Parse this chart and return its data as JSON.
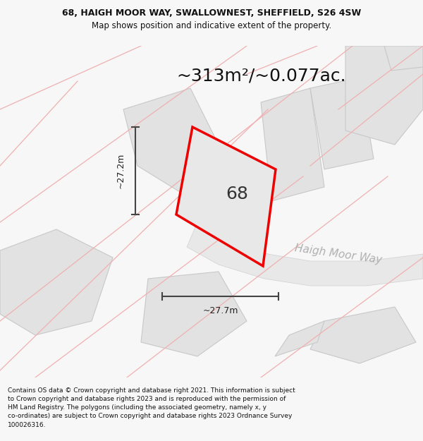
{
  "title_line1": "68, HAIGH MOOR WAY, SWALLOWNEST, SHEFFIELD, S26 4SW",
  "title_line2": "Map shows position and indicative extent of the property.",
  "area_text": "~313m²/~0.077ac.",
  "property_number": "68",
  "dim_height": "~27.2m",
  "dim_width": "~27.7m",
  "street_name": "Haigh Moor Way",
  "footer_lines": [
    "Contains OS data © Crown copyright and database right 2021. This information is subject",
    "to Crown copyright and database rights 2023 and is reproduced with the permission of",
    "HM Land Registry. The polygons (including the associated geometry, namely x, y",
    "co-ordinates) are subject to Crown copyright and database rights 2023 Ordnance Survey",
    "100026316."
  ],
  "bg_color": "#f7f7f7",
  "map_bg": "#ffffff",
  "plot_fill": "#e8e8e8",
  "plot_edge_color": "#ee0000",
  "neighbor_fill": "#e2e2e2",
  "pink_line_color": "#f0b0b0",
  "road_fill": "#e8e8e8",
  "road_edge_color": "#d0d0d0",
  "dim_line_color": "#444444",
  "street_label_color": "#b0b0b0",
  "gray_line_color": "#c8c8c8",
  "title_fontsize": 9,
  "subtitle_fontsize": 8.5,
  "area_fontsize": 18,
  "number_fontsize": 18,
  "dim_fontsize": 9,
  "street_fontsize": 11,
  "footer_fontsize": 6.5
}
